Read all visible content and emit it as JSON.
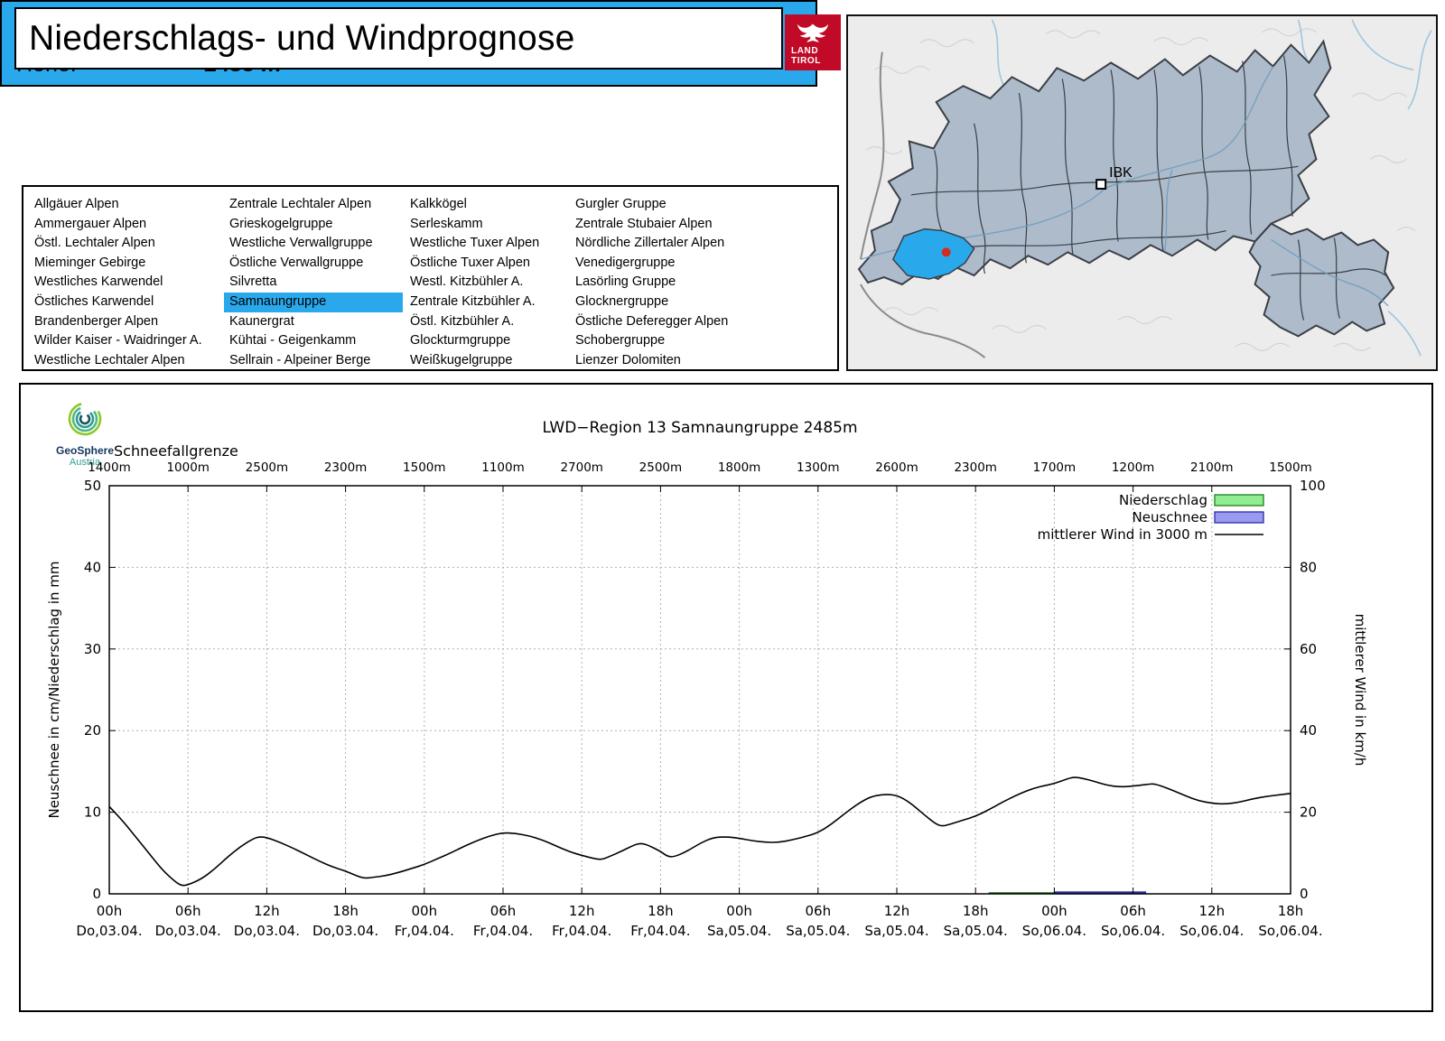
{
  "header": {
    "title": "Niederschlags- und Windprognose",
    "logo": {
      "line1": "LAND",
      "line2": "TIROL"
    }
  },
  "banner": {
    "region_label": "Region 13",
    "region_name": "Samnaungruppe",
    "height_label": "Höhe:",
    "height_value": "2485 m",
    "bg_color": "#29a8ec"
  },
  "region_list": {
    "selected": "Samnaungruppe",
    "columns": [
      [
        "Allgäuer Alpen",
        "Ammergauer Alpen",
        "Östl. Lechtaler Alpen",
        "Mieminger Gebirge",
        "Westliches Karwendel",
        "Östliches Karwendel",
        "Brandenberger Alpen",
        "Wilder Kaiser - Waidringer A.",
        "Westliche Lechtaler Alpen"
      ],
      [
        "Zentrale Lechtaler Alpen",
        "Grieskogelgruppe",
        "Westliche Verwallgruppe",
        "Östliche Verwallgruppe",
        "Silvretta",
        "Samnaungruppe",
        "Kaunergrat",
        "Kühtai - Geigenkamm",
        "Sellrain - Alpeiner Berge"
      ],
      [
        "Kalkkögel",
        "Serleskamm",
        "Westliche Tuxer Alpen",
        "Östliche Tuxer Alpen",
        "Westl. Kitzbühler A.",
        "Zentrale Kitzbühler A.",
        "Östl. Kitzbühler A.",
        "Glockturmgruppe",
        "Weißkugelgruppe"
      ],
      [
        "Gurgler Gruppe",
        "Zentrale Stubaier Alpen",
        "Nördliche Zillertaler Alpen",
        "Venedigergruppe",
        "Lasörling Gruppe",
        "Glocknergruppe",
        "Östliche Deferegger Alpen",
        "Schobergruppe",
        "Lienzer Dolomiten"
      ]
    ]
  },
  "map": {
    "city_label": "IBK",
    "highlight_color": "#29a8ec",
    "region_fill": "#aebbca",
    "dot_color": "#d42b1e"
  },
  "geosphere": {
    "name": "GeoSphere",
    "country": "Austria"
  },
  "chart_data": {
    "type": "line",
    "title": "LWD−Region 13 Samnaungruppe 2485m",
    "snowline_label": "Schneefallgrenze",
    "snowline_values": [
      "1400m",
      "1000m",
      "2500m",
      "2300m",
      "1500m",
      "1100m",
      "2700m",
      "2500m",
      "1800m",
      "1300m",
      "2600m",
      "2300m",
      "1700m",
      "1200m",
      "2100m",
      "1500m"
    ],
    "x_hour_labels": [
      "00h",
      "06h",
      "12h",
      "18h",
      "00h",
      "06h",
      "12h",
      "18h",
      "00h",
      "06h",
      "12h",
      "18h",
      "00h",
      "06h",
      "12h",
      "18h"
    ],
    "x_date_labels": [
      "Do,03.04.",
      "Do,03.04.",
      "Do,03.04.",
      "Do,03.04.",
      "Fr,04.04.",
      "Fr,04.04.",
      "Fr,04.04.",
      "Fr,04.04.",
      "Sa,05.04.",
      "Sa,05.04.",
      "Sa,05.04.",
      "Sa,05.04.",
      "So,06.04.",
      "So,06.04.",
      "So,06.04.",
      "So,06.04."
    ],
    "ylabel_left": "Neuschnee in cm/Niederschlag in mm",
    "ylabel_right": "mittlerer Wind in km/h",
    "ylim_left": [
      0,
      50
    ],
    "ylim_right": [
      0,
      100
    ],
    "yticks_left": [
      0,
      10,
      20,
      30,
      40,
      50
    ],
    "yticks_right": [
      0,
      20,
      40,
      60,
      80,
      100
    ],
    "grid": true,
    "legend_position": "top-right",
    "legend": [
      {
        "label": "Niederschlag",
        "type": "box",
        "fill": "#90ee90",
        "stroke": "#1e7d1e"
      },
      {
        "label": "Neuschnee",
        "type": "box",
        "fill": "#9a9af0",
        "stroke": "#2a2aa8"
      },
      {
        "label": "mittlerer Wind in 3000 m",
        "type": "line",
        "stroke": "#000000"
      }
    ],
    "wind_kmh": [
      [
        0,
        21.4
      ],
      [
        1,
        18
      ],
      [
        2,
        14
      ],
      [
        3,
        10
      ],
      [
        4,
        6
      ],
      [
        5,
        3
      ],
      [
        5.5,
        2
      ],
      [
        6,
        2.2
      ],
      [
        7,
        3.6
      ],
      [
        8,
        6
      ],
      [
        9,
        9
      ],
      [
        10,
        11.6
      ],
      [
        11,
        13.6
      ],
      [
        11.5,
        14
      ],
      [
        12,
        13.8
      ],
      [
        13,
        12.6
      ],
      [
        14,
        11.2
      ],
      [
        15,
        9.6
      ],
      [
        16,
        8
      ],
      [
        17,
        6.6
      ],
      [
        18,
        5.6
      ],
      [
        19,
        4.2
      ],
      [
        19.5,
        3.8
      ],
      [
        20,
        4
      ],
      [
        21,
        4.4
      ],
      [
        22,
        5.2
      ],
      [
        23,
        6.2
      ],
      [
        24,
        7.2
      ],
      [
        25,
        8.6
      ],
      [
        26,
        10
      ],
      [
        27,
        11.6
      ],
      [
        28,
        13
      ],
      [
        29,
        14.2
      ],
      [
        30,
        15
      ],
      [
        31,
        14.8
      ],
      [
        32,
        14.2
      ],
      [
        33,
        13.2
      ],
      [
        34,
        11.8
      ],
      [
        35,
        10.4
      ],
      [
        36,
        9.4
      ],
      [
        37,
        8.6
      ],
      [
        37.5,
        8.4
      ],
      [
        38,
        9
      ],
      [
        39,
        10.4
      ],
      [
        40,
        12
      ],
      [
        40.5,
        12.4
      ],
      [
        41,
        12
      ],
      [
        42,
        10.4
      ],
      [
        42.5,
        9.2
      ],
      [
        43,
        9
      ],
      [
        44,
        10.4
      ],
      [
        45,
        12.4
      ],
      [
        46,
        13.8
      ],
      [
        47,
        14
      ],
      [
        48,
        13.6
      ],
      [
        49,
        13
      ],
      [
        50,
        12.6
      ],
      [
        51,
        12.6
      ],
      [
        52,
        13.2
      ],
      [
        53,
        14
      ],
      [
        54,
        15
      ],
      [
        55,
        17
      ],
      [
        56,
        19.6
      ],
      [
        57,
        22
      ],
      [
        58,
        23.8
      ],
      [
        59,
        24.4
      ],
      [
        60,
        24.2
      ],
      [
        61,
        22.4
      ],
      [
        62,
        19.6
      ],
      [
        63,
        17
      ],
      [
        63.5,
        16.6
      ],
      [
        64,
        17
      ],
      [
        65,
        18
      ],
      [
        66,
        19
      ],
      [
        67,
        20.6
      ],
      [
        68,
        22.4
      ],
      [
        69,
        24
      ],
      [
        70,
        25.4
      ],
      [
        71,
        26.4
      ],
      [
        72,
        27
      ],
      [
        73,
        28.2
      ],
      [
        73.5,
        28.6
      ],
      [
        74,
        28.4
      ],
      [
        75,
        27.6
      ],
      [
        76,
        26.6
      ],
      [
        77,
        26.2
      ],
      [
        78,
        26.4
      ],
      [
        79,
        26.8
      ],
      [
        79.5,
        27
      ],
      [
        80,
        26.6
      ],
      [
        81,
        25.4
      ],
      [
        82,
        24
      ],
      [
        83,
        22.8
      ],
      [
        84,
        22.2
      ],
      [
        85,
        22
      ],
      [
        86,
        22.4
      ],
      [
        87,
        23.2
      ],
      [
        88,
        23.8
      ],
      [
        89,
        24.2
      ],
      [
        90,
        24.6
      ]
    ],
    "niederschlag_mm": [
      {
        "from_h": 67,
        "to_h": 72,
        "value": 0.2
      }
    ],
    "neuschnee_cm": [
      {
        "from_h": 72,
        "to_h": 79,
        "value": 0.3
      }
    ]
  }
}
